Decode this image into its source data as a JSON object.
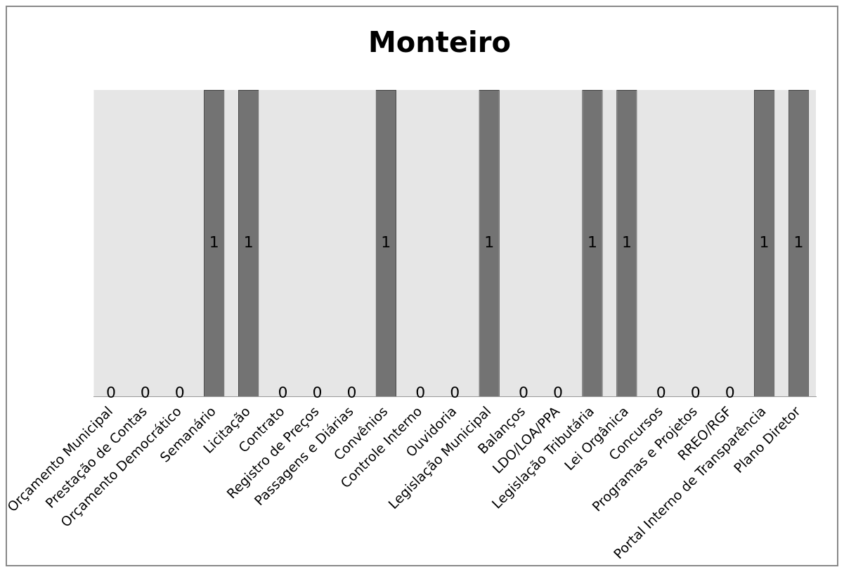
{
  "chart_data": {
    "type": "bar",
    "title": "Monteiro",
    "categories": [
      "Orçamento Municipal",
      "Prestação de Contas",
      "Orçamento Democrático",
      "Semanário",
      "Licitação",
      "Contrato",
      "Registro de Preços",
      "Passagens e Diárias",
      "Convênios",
      "Controle Interno",
      "Ouvidoria",
      "Legislação Municipal",
      "Balanços",
      "LDO/LOA/PPA",
      "Legislação Tributária",
      "Lei Orgânica",
      "Concursos",
      "Programas e Projetos",
      "RREO/RGF",
      "Portal Interno de Transparência",
      "Plano Diretor"
    ],
    "values": [
      0,
      0,
      0,
      1,
      1,
      0,
      0,
      0,
      1,
      0,
      0,
      1,
      0,
      0,
      1,
      1,
      0,
      0,
      0,
      1,
      1
    ],
    "color": "#737373",
    "data_labels": true,
    "grid": false,
    "legend": false
  }
}
